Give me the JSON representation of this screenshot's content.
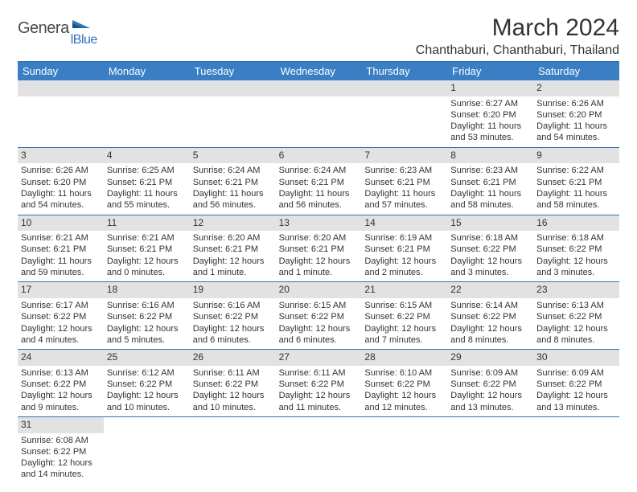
{
  "logo": {
    "part1": "Genera",
    "part2": "lBlue"
  },
  "title": "March 2024",
  "location": "Chanthaburi, Chanthaburi, Thailand",
  "colors": {
    "header_bg": "#3a7fc4",
    "header_text": "#ffffff",
    "grid_border": "#2d72b8",
    "daynum_bg": "#e2e2e2",
    "text": "#333333",
    "logo_gray": "#4a4a4a",
    "logo_blue": "#2d72b8"
  },
  "dayHeaders": [
    "Sunday",
    "Monday",
    "Tuesday",
    "Wednesday",
    "Thursday",
    "Friday",
    "Saturday"
  ],
  "leadingBlanks": 5,
  "days": [
    {
      "n": 1,
      "rise": "6:27 AM",
      "set": "6:20 PM",
      "day": "11 hours and 53 minutes."
    },
    {
      "n": 2,
      "rise": "6:26 AM",
      "set": "6:20 PM",
      "day": "11 hours and 54 minutes."
    },
    {
      "n": 3,
      "rise": "6:26 AM",
      "set": "6:20 PM",
      "day": "11 hours and 54 minutes."
    },
    {
      "n": 4,
      "rise": "6:25 AM",
      "set": "6:21 PM",
      "day": "11 hours and 55 minutes."
    },
    {
      "n": 5,
      "rise": "6:24 AM",
      "set": "6:21 PM",
      "day": "11 hours and 56 minutes."
    },
    {
      "n": 6,
      "rise": "6:24 AM",
      "set": "6:21 PM",
      "day": "11 hours and 56 minutes."
    },
    {
      "n": 7,
      "rise": "6:23 AM",
      "set": "6:21 PM",
      "day": "11 hours and 57 minutes."
    },
    {
      "n": 8,
      "rise": "6:23 AM",
      "set": "6:21 PM",
      "day": "11 hours and 58 minutes."
    },
    {
      "n": 9,
      "rise": "6:22 AM",
      "set": "6:21 PM",
      "day": "11 hours and 58 minutes."
    },
    {
      "n": 10,
      "rise": "6:21 AM",
      "set": "6:21 PM",
      "day": "11 hours and 59 minutes."
    },
    {
      "n": 11,
      "rise": "6:21 AM",
      "set": "6:21 PM",
      "day": "12 hours and 0 minutes."
    },
    {
      "n": 12,
      "rise": "6:20 AM",
      "set": "6:21 PM",
      "day": "12 hours and 1 minute."
    },
    {
      "n": 13,
      "rise": "6:20 AM",
      "set": "6:21 PM",
      "day": "12 hours and 1 minute."
    },
    {
      "n": 14,
      "rise": "6:19 AM",
      "set": "6:21 PM",
      "day": "12 hours and 2 minutes."
    },
    {
      "n": 15,
      "rise": "6:18 AM",
      "set": "6:22 PM",
      "day": "12 hours and 3 minutes."
    },
    {
      "n": 16,
      "rise": "6:18 AM",
      "set": "6:22 PM",
      "day": "12 hours and 3 minutes."
    },
    {
      "n": 17,
      "rise": "6:17 AM",
      "set": "6:22 PM",
      "day": "12 hours and 4 minutes."
    },
    {
      "n": 18,
      "rise": "6:16 AM",
      "set": "6:22 PM",
      "day": "12 hours and 5 minutes."
    },
    {
      "n": 19,
      "rise": "6:16 AM",
      "set": "6:22 PM",
      "day": "12 hours and 6 minutes."
    },
    {
      "n": 20,
      "rise": "6:15 AM",
      "set": "6:22 PM",
      "day": "12 hours and 6 minutes."
    },
    {
      "n": 21,
      "rise": "6:15 AM",
      "set": "6:22 PM",
      "day": "12 hours and 7 minutes."
    },
    {
      "n": 22,
      "rise": "6:14 AM",
      "set": "6:22 PM",
      "day": "12 hours and 8 minutes."
    },
    {
      "n": 23,
      "rise": "6:13 AM",
      "set": "6:22 PM",
      "day": "12 hours and 8 minutes."
    },
    {
      "n": 24,
      "rise": "6:13 AM",
      "set": "6:22 PM",
      "day": "12 hours and 9 minutes."
    },
    {
      "n": 25,
      "rise": "6:12 AM",
      "set": "6:22 PM",
      "day": "12 hours and 10 minutes."
    },
    {
      "n": 26,
      "rise": "6:11 AM",
      "set": "6:22 PM",
      "day": "12 hours and 10 minutes."
    },
    {
      "n": 27,
      "rise": "6:11 AM",
      "set": "6:22 PM",
      "day": "12 hours and 11 minutes."
    },
    {
      "n": 28,
      "rise": "6:10 AM",
      "set": "6:22 PM",
      "day": "12 hours and 12 minutes."
    },
    {
      "n": 29,
      "rise": "6:09 AM",
      "set": "6:22 PM",
      "day": "12 hours and 13 minutes."
    },
    {
      "n": 30,
      "rise": "6:09 AM",
      "set": "6:22 PM",
      "day": "12 hours and 13 minutes."
    },
    {
      "n": 31,
      "rise": "6:08 AM",
      "set": "6:22 PM",
      "day": "12 hours and 14 minutes."
    }
  ],
  "labels": {
    "sunrise": "Sunrise:",
    "sunset": "Sunset:",
    "daylight": "Daylight:"
  }
}
